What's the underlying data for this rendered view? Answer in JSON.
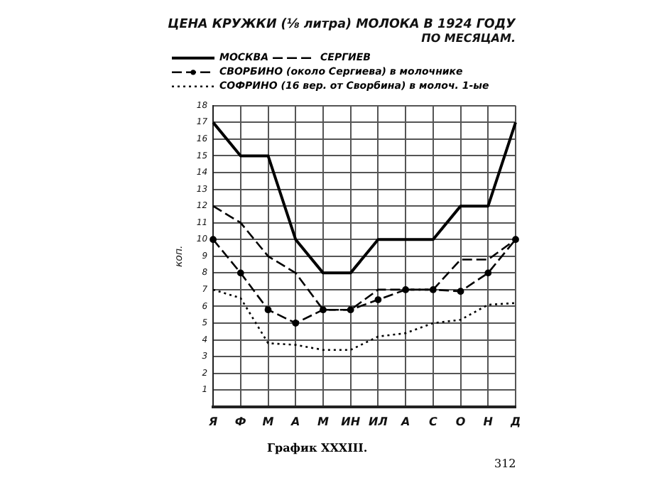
{
  "chart_data": {
    "type": "line",
    "title": "ЦЕНА КРУЖКИ (⅛ литра) МОЛОКА В 1924 ГОДУ",
    "subtitle": "ПО МЕСЯЦАМ.",
    "ylabel": "коп.",
    "categories": [
      "Я",
      "Ф",
      "М",
      "А",
      "М",
      "ИН",
      "ИЛ",
      "А",
      "С",
      "О",
      "Н",
      "Д"
    ],
    "series": [
      {
        "name": "МОСКВА",
        "color": "#000000",
        "line_style": "solid",
        "marker": "none",
        "values": [
          17,
          15,
          15,
          10,
          8,
          8,
          10,
          10,
          10,
          12,
          12,
          17
        ]
      },
      {
        "name": "СЕРГИЕВ",
        "color": "#000000",
        "line_style": "dashed",
        "marker": "none",
        "values": [
          12,
          11,
          9,
          8,
          5.8,
          5.8,
          7,
          7,
          7,
          8.8,
          8.8,
          10
        ]
      },
      {
        "name": "СВОРБИНО (около Сергиева) в молочнике",
        "color": "#000000",
        "line_style": "dashed",
        "marker": "circle",
        "values": [
          10,
          8,
          5.8,
          5,
          5.8,
          5.8,
          6.4,
          7,
          7,
          6.9,
          8,
          10
        ]
      },
      {
        "name": "СОФРИНО (16 вер. от Сворбина) в молоч. 1-ые",
        "color": "#000000",
        "line_style": "dotted",
        "marker": "none",
        "values": [
          7,
          6.5,
          3.8,
          3.7,
          3.4,
          3.4,
          4.2,
          4.4,
          5,
          5.2,
          6.1,
          6.2
        ]
      }
    ],
    "ylim": [
      0,
      18
    ],
    "yticks": [
      1,
      2,
      3,
      4,
      5,
      6,
      7,
      8,
      9,
      10,
      11,
      12,
      13,
      14,
      15,
      16,
      17,
      18
    ],
    "grid": true,
    "legend": "top",
    "annotations": [
      "График XXXIII.",
      "312"
    ]
  }
}
